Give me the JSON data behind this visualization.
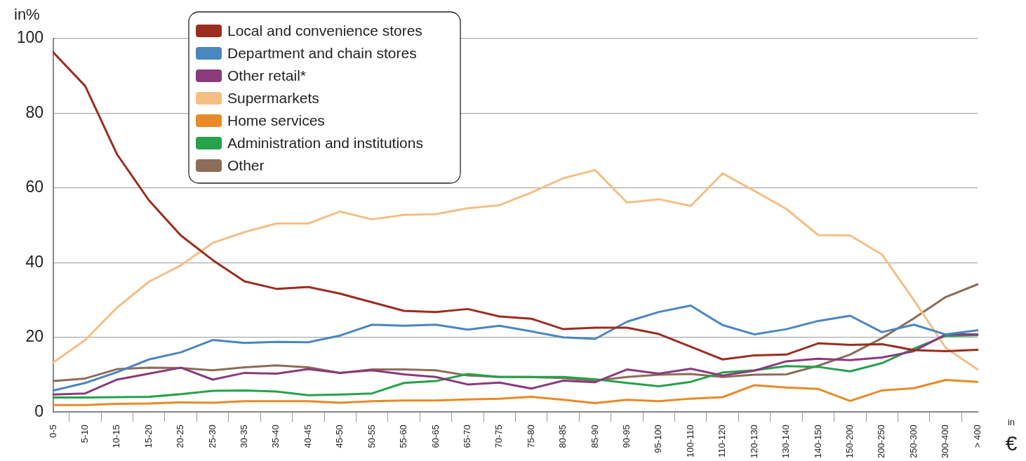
{
  "chart_data": {
    "type": "line",
    "ylabel": "in%",
    "xlabel": "in €",
    "categories": [
      "0-5",
      "5-10",
      "10-15",
      "15-20",
      "20-25",
      "25-30",
      "30-35",
      "35-40",
      "40-45",
      "45-50",
      "50-55",
      "55-60",
      "60-65",
      "65-70",
      "70-75",
      "75-80",
      "80-85",
      "85-90",
      "90-95",
      "95-100",
      "100-110",
      "110-120",
      "120-130",
      "130-140",
      "140-150",
      "150-200",
      "200-250",
      "250-300",
      "300-400",
      "> 400"
    ],
    "series": [
      {
        "name": "Local and convenience stores",
        "color": "#9b2d20",
        "values": [
          96.3,
          87.3,
          69,
          56.7,
          47.3,
          40.7,
          35,
          33,
          33.5,
          31.7,
          29.4,
          27.1,
          26.8,
          27.6,
          25.6,
          25,
          22.2,
          22.6,
          22.6,
          20.9,
          17.5,
          14.1,
          15.2,
          15.4,
          18.4,
          18,
          18.2,
          16.6,
          16.3,
          16.7
        ]
      },
      {
        "name": "Department and chain stores",
        "color": "#4a86c0",
        "values": [
          5.8,
          7.8,
          10.7,
          14.1,
          16,
          19.3,
          18.5,
          18.8,
          18.7,
          20.5,
          23.4,
          23.1,
          23.4,
          22.1,
          23.1,
          21.6,
          20,
          19.6,
          24.2,
          26.8,
          28.5,
          23.3,
          20.8,
          22.2,
          24.4,
          25.8,
          21.4,
          23.4,
          20.8,
          21.9
        ]
      },
      {
        "name": "Other retail*",
        "color": "#8b3a7c",
        "values": [
          4.7,
          5,
          8.7,
          10.3,
          11.9,
          8.7,
          10.5,
          10.3,
          11.5,
          10.5,
          11.2,
          10.1,
          9.4,
          7.4,
          7.9,
          6.3,
          8.4,
          8,
          11.4,
          10.3,
          11.6,
          9.8,
          11.1,
          13.6,
          14.3,
          13.9,
          14.6,
          16.3,
          20.8,
          20.8
        ]
      },
      {
        "name": "Supermarkets",
        "color": "#f4bf85",
        "values": [
          13.3,
          19.3,
          28,
          34.9,
          39.3,
          45.3,
          48.2,
          50.5,
          50.5,
          53.7,
          51.6,
          52.8,
          53,
          54.6,
          55.4,
          58.8,
          62.6,
          64.8,
          56.1,
          57,
          55.2,
          63.9,
          59.2,
          54.4,
          47.4,
          47.3,
          42.2,
          30,
          17.2,
          11.4
        ]
      },
      {
        "name": "Home services",
        "color": "#e88a25",
        "values": [
          1.9,
          1.9,
          2.2,
          2.3,
          2.6,
          2.5,
          2.9,
          2.9,
          2.9,
          2.5,
          2.9,
          3.1,
          3.1,
          3.4,
          3.6,
          4.1,
          3.3,
          2.4,
          3.3,
          2.9,
          3.6,
          4,
          7.2,
          6.6,
          6.2,
          3,
          5.8,
          6.4,
          8.6,
          8.1
        ]
      },
      {
        "name": "Administration and institutions",
        "color": "#25a24b",
        "values": [
          3.9,
          3.9,
          4,
          4.1,
          4.8,
          5.7,
          5.8,
          5.5,
          4.5,
          4.7,
          5,
          7.8,
          8.3,
          10.2,
          9.4,
          9.4,
          9.4,
          8.8,
          7.8,
          6.9,
          8.1,
          10.6,
          11.2,
          12.3,
          12.1,
          10.9,
          13.1,
          17,
          20.4,
          20.6
        ]
      },
      {
        "name": "Other",
        "color": "#8c6d59",
        "values": [
          8.3,
          9,
          11.5,
          11.9,
          11.8,
          11.2,
          12,
          12.5,
          12,
          10.5,
          11.4,
          11.4,
          11.2,
          9.8,
          9.4,
          9.4,
          9.1,
          8.4,
          9.4,
          10,
          10.2,
          9.4,
          10,
          10.1,
          12.4,
          15.4,
          19.8,
          25.1,
          30.8,
          34.2
        ]
      }
    ],
    "ylim": [
      0,
      100
    ],
    "yticks": [
      0,
      20,
      40,
      60,
      80,
      100
    ],
    "grid": "y",
    "legend": "top left",
    "marker": "none",
    "line_style": "solid"
  }
}
